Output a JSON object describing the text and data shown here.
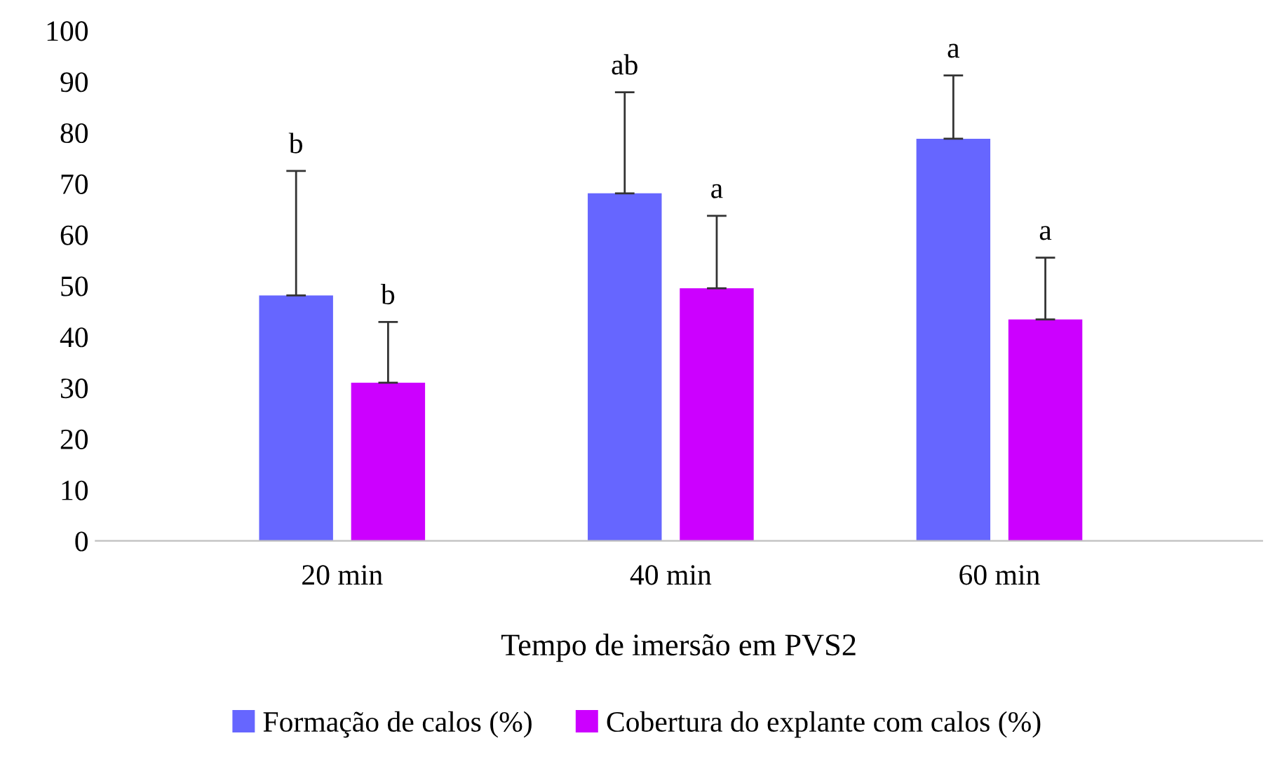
{
  "chart_data": {
    "type": "bar",
    "xlabel": "Tempo de imersão em PVS2",
    "categories": [
      "20 min",
      "40 min",
      "60 min"
    ],
    "series": [
      {
        "name": "Formação de calos (%)",
        "color": "#6666ff",
        "values": [
          48.1,
          68.1,
          78.8
        ],
        "errors": [
          [
            48.1,
            72.5
          ],
          [
            68.1,
            87.9
          ],
          [
            78.8,
            91.2
          ]
        ]
      },
      {
        "name": "Cobertura do explante com calos (%)",
        "color": "#cc00ff",
        "values": [
          31.0,
          49.5,
          43.4
        ],
        "errors": [
          [
            31.0,
            42.9
          ],
          [
            49.5,
            63.7
          ],
          [
            43.4,
            55.5
          ]
        ]
      }
    ],
    "annotations": [
      "b",
      "b",
      "ab",
      "a",
      "a",
      "a"
    ],
    "ylim": [
      0,
      100
    ],
    "yticks": [
      0,
      10,
      20,
      30,
      40,
      50,
      60,
      70,
      80,
      90,
      100
    ],
    "grid": false,
    "legend": "bottom"
  }
}
